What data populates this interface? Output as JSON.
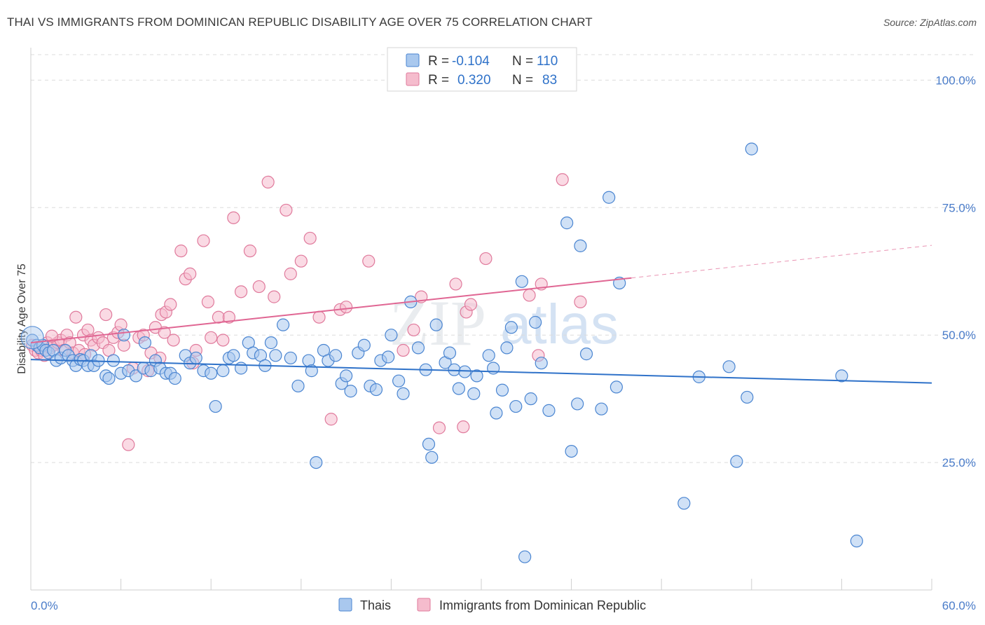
{
  "title": "THAI VS IMMIGRANTS FROM DOMINICAN REPUBLIC DISABILITY AGE OVER 75 CORRELATION CHART",
  "source": "Source: ZipAtlas.com",
  "watermark": {
    "zip": "ZIP",
    "atlas": "atlas"
  },
  "legend": {
    "rows": [
      {
        "r_label": "R =",
        "r_value": "-0.104",
        "n_label": "N =",
        "n_value": "110"
      },
      {
        "r_label": "R =",
        "r_value": "0.320",
        "n_label": "N =",
        "n_value": "83"
      }
    ]
  },
  "bottom_legend": [
    "Thais",
    "Immigrants from Dominican Republic"
  ],
  "colors": {
    "blue_fill": "#a9c8ee",
    "blue_stroke": "#4a85d1",
    "blue_line": "#2f72c9",
    "pink_fill": "#f5bccd",
    "pink_stroke": "#e07a9c",
    "pink_line": "#e06693",
    "tick_text": "#4a7cc9",
    "grid": "#dcdcdc"
  },
  "chart_data": {
    "type": "scatter",
    "title": "THAI VS IMMIGRANTS FROM DOMINICAN REPUBLIC DISABILITY AGE OVER 75 CORRELATION CHART",
    "xlabel": "",
    "ylabel": "Disability Age Over 75",
    "xlim": [
      0,
      60
    ],
    "ylim": [
      0,
      105
    ],
    "x_tick_labels": [
      "0.0%",
      "60.0%"
    ],
    "y_ticks": [
      25,
      50,
      75,
      100
    ],
    "y_tick_labels": [
      "25.0%",
      "50.0%",
      "75.0%",
      "100.0%"
    ],
    "grid": true,
    "legend_position": "top-center",
    "series": [
      {
        "name": "Thais",
        "R": -0.104,
        "N": 110,
        "trend": {
          "x": [
            0,
            60
          ],
          "y": [
            45.2,
            40.6
          ]
        },
        "points": [
          [
            0.1,
            49
          ],
          [
            0.4,
            48
          ],
          [
            0.6,
            47.5
          ],
          [
            0.8,
            48
          ],
          [
            1.0,
            47
          ],
          [
            1.2,
            46.5
          ],
          [
            1.5,
            47
          ],
          [
            1.7,
            45
          ],
          [
            2.0,
            45.5
          ],
          [
            2.3,
            47
          ],
          [
            2.5,
            46
          ],
          [
            2.8,
            45
          ],
          [
            3.0,
            44
          ],
          [
            3.3,
            45.2
          ],
          [
            3.5,
            45
          ],
          [
            3.8,
            44
          ],
          [
            4.0,
            46
          ],
          [
            4.2,
            44
          ],
          [
            4.5,
            45
          ],
          [
            5.0,
            42
          ],
          [
            5.2,
            41.5
          ],
          [
            5.5,
            45
          ],
          [
            6.0,
            42.5
          ],
          [
            6.2,
            50
          ],
          [
            6.5,
            43
          ],
          [
            7.0,
            42
          ],
          [
            7.5,
            43.5
          ],
          [
            7.6,
            48.5
          ],
          [
            8.0,
            43
          ],
          [
            8.3,
            45
          ],
          [
            8.6,
            43.5
          ],
          [
            9.0,
            42.5
          ],
          [
            9.3,
            42.5
          ],
          [
            9.6,
            41.5
          ],
          [
            10.3,
            46
          ],
          [
            10.6,
            44.5
          ],
          [
            11.0,
            45.5
          ],
          [
            11.5,
            43
          ],
          [
            12.0,
            42.5
          ],
          [
            12.3,
            36
          ],
          [
            12.8,
            43
          ],
          [
            13.2,
            45.5
          ],
          [
            13.5,
            46
          ],
          [
            14.0,
            43.5
          ],
          [
            14.5,
            48.5
          ],
          [
            14.8,
            46.5
          ],
          [
            15.3,
            46
          ],
          [
            15.6,
            44
          ],
          [
            16.0,
            48.5
          ],
          [
            16.3,
            46
          ],
          [
            16.8,
            52
          ],
          [
            17.3,
            45.5
          ],
          [
            17.8,
            40
          ],
          [
            18.5,
            45
          ],
          [
            18.7,
            43
          ],
          [
            19.0,
            25
          ],
          [
            19.5,
            47
          ],
          [
            19.8,
            45
          ],
          [
            20.3,
            46
          ],
          [
            20.7,
            40.5
          ],
          [
            21.0,
            42
          ],
          [
            21.3,
            39
          ],
          [
            21.8,
            46.5
          ],
          [
            22.2,
            48
          ],
          [
            22.6,
            40
          ],
          [
            23.0,
            39.3
          ],
          [
            23.3,
            45
          ],
          [
            23.8,
            45.7
          ],
          [
            24.0,
            50
          ],
          [
            24.5,
            41
          ],
          [
            24.8,
            38.5
          ],
          [
            25.3,
            56.5
          ],
          [
            25.8,
            47.5
          ],
          [
            26.3,
            43.2
          ],
          [
            26.5,
            28.6
          ],
          [
            26.7,
            26
          ],
          [
            27.0,
            52
          ],
          [
            27.6,
            44.6
          ],
          [
            27.9,
            46.5
          ],
          [
            28.2,
            43.2
          ],
          [
            28.5,
            39.5
          ],
          [
            28.9,
            42.8
          ],
          [
            29.5,
            38.5
          ],
          [
            29.7,
            42
          ],
          [
            30.5,
            46
          ],
          [
            30.8,
            43.5
          ],
          [
            31.0,
            34.7
          ],
          [
            31.4,
            39.2
          ],
          [
            31.7,
            47.5
          ],
          [
            32.0,
            51.5
          ],
          [
            32.3,
            36
          ],
          [
            32.7,
            60.5
          ],
          [
            32.9,
            6.5
          ],
          [
            33.3,
            37.5
          ],
          [
            33.6,
            52.5
          ],
          [
            34.0,
            44.5
          ],
          [
            34.5,
            35.2
          ],
          [
            35.7,
            72
          ],
          [
            36.0,
            27.2
          ],
          [
            36.4,
            36.5
          ],
          [
            36.6,
            67.5
          ],
          [
            37.0,
            46.3
          ],
          [
            38.0,
            35.5
          ],
          [
            38.5,
            77
          ],
          [
            39.0,
            39.8
          ],
          [
            39.2,
            60.2
          ],
          [
            43.5,
            17
          ],
          [
            44.5,
            41.8
          ],
          [
            46.5,
            43.8
          ],
          [
            47.0,
            25.2
          ],
          [
            47.7,
            37.8
          ],
          [
            48.0,
            86.5
          ],
          [
            54.0,
            42
          ],
          [
            55.0,
            9.6
          ]
        ]
      },
      {
        "name": "Immigrants from Dominican Republic",
        "R": 0.32,
        "N": 83,
        "trend": {
          "x": [
            0,
            40
          ],
          "y": [
            48.5,
            61.2
          ]
        },
        "trend_dashed": {
          "x": [
            40,
            60
          ],
          "y": [
            61.2,
            67.6
          ]
        },
        "points": [
          [
            0.1,
            48
          ],
          [
            0.3,
            47
          ],
          [
            0.5,
            46.5
          ],
          [
            0.7,
            47
          ],
          [
            0.9,
            46
          ],
          [
            1.1,
            48.5
          ],
          [
            1.3,
            47.5
          ],
          [
            1.5,
            48
          ],
          [
            1.8,
            48.5
          ],
          [
            2.0,
            49
          ],
          [
            2.2,
            47
          ],
          [
            2.4,
            50
          ],
          [
            2.6,
            48.5
          ],
          [
            2.8,
            46.5
          ],
          [
            3.0,
            53.5
          ],
          [
            3.2,
            47
          ],
          [
            3.5,
            50
          ],
          [
            3.8,
            51
          ],
          [
            4.0,
            49
          ],
          [
            4.2,
            48
          ],
          [
            4.5,
            49.5
          ],
          [
            4.8,
            48.5
          ],
          [
            5.0,
            54
          ],
          [
            5.2,
            47
          ],
          [
            5.5,
            49.5
          ],
          [
            5.8,
            50.5
          ],
          [
            6.0,
            52
          ],
          [
            6.5,
            28.5
          ],
          [
            6.8,
            43.5
          ],
          [
            7.2,
            49.5
          ],
          [
            7.5,
            50
          ],
          [
            7.8,
            43
          ],
          [
            8.0,
            46.5
          ],
          [
            8.3,
            51.5
          ],
          [
            8.7,
            54
          ],
          [
            8.9,
            50.5
          ],
          [
            9.0,
            54.5
          ],
          [
            9.3,
            56
          ],
          [
            9.5,
            49
          ],
          [
            10.0,
            66.5
          ],
          [
            10.3,
            61
          ],
          [
            10.6,
            62
          ],
          [
            11.0,
            47
          ],
          [
            11.5,
            68.5
          ],
          [
            11.8,
            56.5
          ],
          [
            12.0,
            49.5
          ],
          [
            12.5,
            53.5
          ],
          [
            12.8,
            49
          ],
          [
            13.2,
            53.5
          ],
          [
            13.5,
            73
          ],
          [
            14.0,
            58.5
          ],
          [
            14.6,
            66.5
          ],
          [
            15.2,
            59.5
          ],
          [
            15.8,
            80
          ],
          [
            16.2,
            57.5
          ],
          [
            17.0,
            74.5
          ],
          [
            17.3,
            62
          ],
          [
            18.0,
            64.5
          ],
          [
            18.6,
            69
          ],
          [
            19.2,
            53.5
          ],
          [
            20.0,
            33.5
          ],
          [
            20.6,
            55
          ],
          [
            21.0,
            55.5
          ],
          [
            22.5,
            64.5
          ],
          [
            24.8,
            47
          ],
          [
            25.5,
            51
          ],
          [
            26.0,
            57.5
          ],
          [
            27.2,
            31.8
          ],
          [
            28.3,
            60
          ],
          [
            28.8,
            32
          ],
          [
            29.0,
            54.5
          ],
          [
            29.3,
            56
          ],
          [
            30.3,
            65
          ],
          [
            33.2,
            57.8
          ],
          [
            33.8,
            46
          ],
          [
            34.0,
            60
          ],
          [
            35.4,
            80.5
          ],
          [
            36.6,
            56.5
          ],
          [
            1.4,
            49.8
          ],
          [
            3.6,
            46.2
          ],
          [
            6.2,
            48
          ],
          [
            8.6,
            45.5
          ],
          [
            10.8,
            44.5
          ]
        ]
      }
    ]
  }
}
